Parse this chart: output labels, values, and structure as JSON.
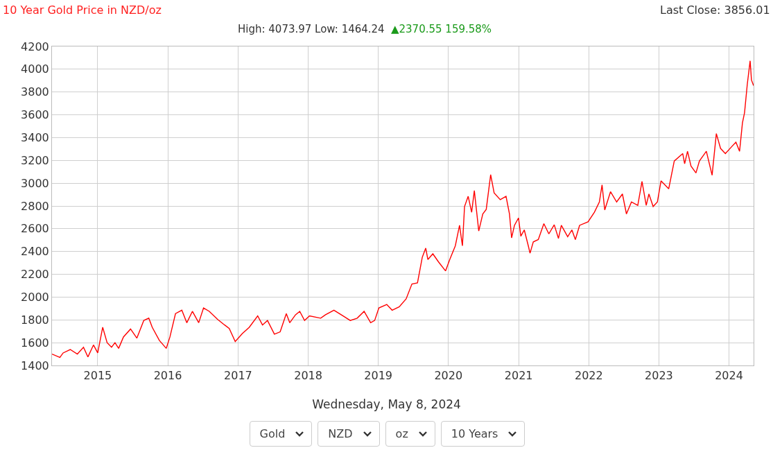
{
  "chart_data": {
    "type": "line",
    "title": "10 Year Gold Price in NZD/oz",
    "subtitle": "High: 4073.97 Low: 1464.24",
    "annotations": [
      "▲2370.55 159.58%",
      "Last Close: 3856.01",
      "Wednesday, May 8, 2024",
      "Gold",
      "NZD",
      "oz",
      "10 Years"
    ],
    "x": [
      "2014-05-08",
      "2014-06-18",
      "2014-07-05",
      "2014-08-11",
      "2014-09-17",
      "2014-10-19",
      "2014-11-11",
      "2014-12-10",
      "2015-01-01",
      "2015-01-27",
      "2015-02-19",
      "2015-03-14",
      "2015-04-01",
      "2015-04-20",
      "2015-05-15",
      "2015-06-21",
      "2015-07-24",
      "2015-08-29",
      "2015-09-24",
      "2015-10-12",
      "2015-11-18",
      "2015-12-24",
      "2016-01-12",
      "2016-02-10",
      "2016-03-14",
      "2016-04-09",
      "2016-05-08",
      "2016-06-10",
      "2016-07-05",
      "2016-08-04",
      "2016-09-16",
      "2016-10-23",
      "2016-11-16",
      "2016-12-17",
      "2017-01-23",
      "2017-02-28",
      "2017-04-13",
      "2017-05-08",
      "2017-06-03",
      "2017-07-09",
      "2017-08-08",
      "2017-09-09",
      "2017-09-27",
      "2017-10-27",
      "2017-11-18",
      "2017-12-13",
      "2018-01-08",
      "2018-03-07",
      "2018-04-01",
      "2018-05-15",
      "2018-07-02",
      "2018-08-08",
      "2018-09-13",
      "2018-10-19",
      "2018-11-22",
      "2018-12-13",
      "2019-01-04",
      "2019-02-14",
      "2019-03-14",
      "2019-04-20",
      "2019-05-26",
      "2019-06-25",
      "2019-07-24",
      "2019-08-18",
      "2019-09-05",
      "2019-09-16",
      "2019-10-12",
      "2019-11-10",
      "2019-12-17",
      "2020-01-08",
      "2020-02-06",
      "2020-02-28",
      "2020-03-14",
      "2020-03-25",
      "2020-04-13",
      "2020-05-01",
      "2020-05-15",
      "2020-06-07",
      "2020-06-28",
      "2020-07-16",
      "2020-08-08",
      "2020-08-26",
      "2020-09-27",
      "2020-10-27",
      "2020-11-14",
      "2020-11-25",
      "2020-12-10",
      "2020-12-31",
      "2021-01-12",
      "2021-01-30",
      "2021-02-20",
      "2021-03-01",
      "2021-03-18",
      "2021-04-13",
      "2021-05-12",
      "2021-06-07",
      "2021-07-05",
      "2021-07-27",
      "2021-08-11",
      "2021-09-13",
      "2021-10-05",
      "2021-10-23",
      "2021-11-14",
      "2021-12-28",
      "2022-01-30",
      "2022-02-25",
      "2022-03-11",
      "2022-03-25",
      "2022-04-24",
      "2022-05-26",
      "2022-06-25",
      "2022-07-16",
      "2022-08-11",
      "2022-09-13",
      "2022-10-05",
      "2022-10-27",
      "2022-11-10",
      "2022-12-02",
      "2022-12-24",
      "2023-01-12",
      "2023-02-21",
      "2023-03-22",
      "2023-05-05",
      "2023-05-15",
      "2023-05-30",
      "2023-06-17",
      "2023-07-13",
      "2023-07-31",
      "2023-09-05",
      "2023-10-05",
      "2023-10-27",
      "2023-11-18",
      "2023-12-13",
      "2024-01-12",
      "2024-02-06",
      "2024-02-25",
      "2024-03-11",
      "2024-03-22",
      "2024-04-05",
      "2024-04-20",
      "2024-04-27",
      "2024-05-08"
    ],
    "series": [
      {
        "color": "#ff0000",
        "values": [
          1500,
          1470,
          1510,
          1540,
          1500,
          1560,
          1475,
          1580,
          1510,
          1735,
          1600,
          1560,
          1600,
          1550,
          1650,
          1720,
          1640,
          1795,
          1815,
          1735,
          1620,
          1550,
          1650,
          1855,
          1885,
          1775,
          1875,
          1775,
          1905,
          1875,
          1805,
          1755,
          1725,
          1610,
          1680,
          1735,
          1835,
          1755,
          1795,
          1675,
          1695,
          1855,
          1775,
          1845,
          1875,
          1795,
          1835,
          1815,
          1845,
          1885,
          1835,
          1795,
          1815,
          1875,
          1775,
          1795,
          1905,
          1935,
          1885,
          1915,
          1985,
          2115,
          2125,
          2350,
          2430,
          2330,
          2380,
          2310,
          2230,
          2330,
          2450,
          2630,
          2450,
          2795,
          2885,
          2745,
          2935,
          2580,
          2730,
          2770,
          3075,
          2915,
          2855,
          2885,
          2730,
          2520,
          2630,
          2695,
          2535,
          2590,
          2450,
          2385,
          2485,
          2505,
          2645,
          2555,
          2635,
          2515,
          2630,
          2530,
          2590,
          2505,
          2630,
          2660,
          2745,
          2835,
          2985,
          2765,
          2925,
          2835,
          2905,
          2730,
          2835,
          2805,
          3015,
          2805,
          2905,
          2795,
          2835,
          3020,
          2950,
          3195,
          3260,
          3170,
          3280,
          3150,
          3090,
          3195,
          3280,
          3070,
          3435,
          3305,
          3260,
          3315,
          3360,
          3280,
          3530,
          3620,
          3865,
          4074,
          3905,
          3856
        ]
      }
    ],
    "xlim": [
      "2014-05-08",
      "2024-05-08"
    ],
    "xticks": [
      {
        "value": "2015-01-01",
        "label": "2015"
      },
      {
        "value": "2016-01-01",
        "label": "2016"
      },
      {
        "value": "2017-01-01",
        "label": "2017"
      },
      {
        "value": "2018-01-01",
        "label": "2018"
      },
      {
        "value": "2019-01-01",
        "label": "2019"
      },
      {
        "value": "2020-01-01",
        "label": "2020"
      },
      {
        "value": "2021-01-01",
        "label": "2021"
      },
      {
        "value": "2022-01-01",
        "label": "2022"
      },
      {
        "value": "2023-01-01",
        "label": "2023"
      },
      {
        "value": "2024-01-01",
        "label": "2024"
      }
    ],
    "ylim": [
      1400,
      4200
    ],
    "yticks": [
      1400,
      1600,
      1800,
      2000,
      2200,
      2400,
      2600,
      2800,
      3000,
      3200,
      3400,
      3600,
      3800,
      4000,
      4200
    ],
    "grid": true,
    "marker": "none",
    "line_style": "solid"
  }
}
